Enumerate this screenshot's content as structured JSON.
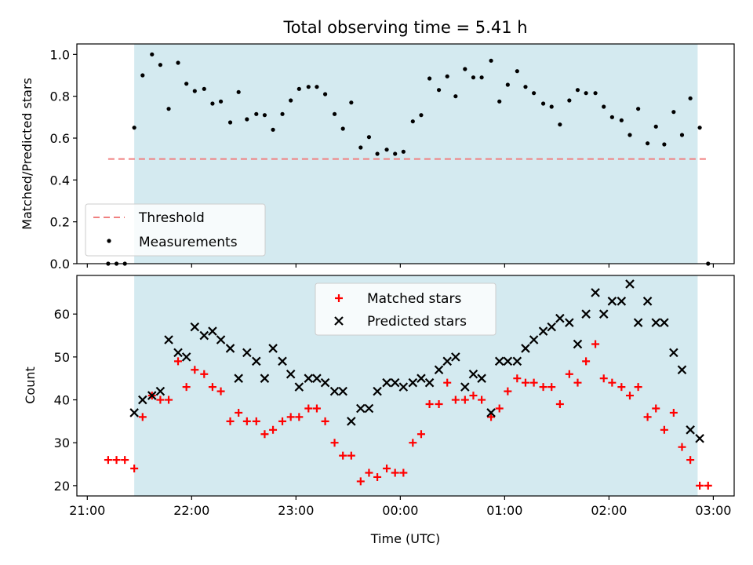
{
  "chart_data": [
    {
      "type": "scatter",
      "panel": "top",
      "title": "Total observing time = 5.41 h",
      "ylabel": "Matched/Predicted stars",
      "xlabel": "",
      "ylim": [
        0,
        1.05
      ],
      "yticks": [
        0.0,
        0.2,
        0.4,
        0.6,
        0.8,
        1.0
      ],
      "ytick_labels": [
        "0.0",
        "0.2",
        "0.4",
        "0.6",
        "0.8",
        "1.0"
      ],
      "xlim": [
        20.9,
        27.2
      ],
      "xticks": [
        21,
        22,
        23,
        24,
        25,
        26,
        27
      ],
      "grid": false,
      "legend_position": "lower-left",
      "shaded_region": {
        "x_start": 21.45,
        "x_end": 26.85,
        "color": "#d4eaf0"
      },
      "threshold": {
        "name": "Threshold",
        "value": 0.5,
        "x_start": 21.2,
        "x_end": 26.93,
        "color": "#f08080",
        "style": "dashed"
      },
      "series": [
        {
          "name": "Measurements",
          "color": "#000000",
          "marker": "dot",
          "x": [
            21.2,
            21.28,
            21.36,
            21.45,
            21.53,
            21.62,
            21.7,
            21.78,
            21.87,
            21.95,
            22.03,
            22.12,
            22.2,
            22.28,
            22.37,
            22.45,
            22.53,
            22.62,
            22.7,
            22.78,
            22.87,
            22.95,
            23.03,
            23.12,
            23.2,
            23.28,
            23.37,
            23.45,
            23.53,
            23.62,
            23.7,
            23.78,
            23.87,
            23.95,
            24.03,
            24.12,
            24.2,
            24.28,
            24.37,
            24.45,
            24.53,
            24.62,
            24.7,
            24.78,
            24.87,
            24.95,
            25.03,
            25.12,
            25.2,
            25.28,
            25.37,
            25.45,
            25.53,
            25.62,
            25.7,
            25.78,
            25.87,
            25.95,
            26.03,
            26.12,
            26.2,
            26.28,
            26.37,
            26.45,
            26.53,
            26.62,
            26.7,
            26.78,
            26.87,
            26.95
          ],
          "y": [
            0.0,
            0.0,
            0.0,
            0.65,
            0.9,
            1.0,
            0.95,
            0.74,
            0.96,
            0.86,
            0.825,
            0.835,
            0.765,
            0.775,
            0.675,
            0.82,
            0.69,
            0.715,
            0.71,
            0.64,
            0.715,
            0.78,
            0.835,
            0.845,
            0.845,
            0.81,
            0.715,
            0.645,
            0.77,
            0.555,
            0.605,
            0.525,
            0.545,
            0.525,
            0.535,
            0.68,
            0.71,
            0.885,
            0.83,
            0.895,
            0.8,
            0.93,
            0.89,
            0.89,
            0.97,
            0.775,
            0.855,
            0.92,
            0.845,
            0.815,
            0.765,
            0.75,
            0.665,
            0.78,
            0.83,
            0.815,
            0.815,
            0.75,
            0.7,
            0.685,
            0.615,
            0.74,
            0.575,
            0.655,
            0.57,
            0.725,
            0.615,
            0.79,
            0.65,
            0.0
          ]
        }
      ]
    },
    {
      "type": "scatter",
      "panel": "bottom",
      "title": "",
      "ylabel": "Count",
      "xlabel": "Time (UTC)",
      "ylim": [
        17.6,
        69
      ],
      "yticks": [
        20,
        30,
        40,
        50,
        60
      ],
      "ytick_labels": [
        "20",
        "30",
        "40",
        "50",
        "60"
      ],
      "xlim": [
        20.9,
        27.2
      ],
      "xticks": [
        21,
        22,
        23,
        24,
        25,
        26,
        27
      ],
      "xtick_labels": [
        "21:00",
        "22:00",
        "23:00",
        "00:00",
        "01:00",
        "02:00",
        "03:00"
      ],
      "grid": false,
      "legend_position": "upper-center",
      "shaded_region": {
        "x_start": 21.45,
        "x_end": 26.85,
        "color": "#d4eaf0"
      },
      "series": [
        {
          "name": "Matched stars",
          "color": "#ff0000",
          "marker": "plus",
          "x": [
            21.2,
            21.28,
            21.36,
            21.45,
            21.53,
            21.62,
            21.7,
            21.78,
            21.87,
            21.95,
            22.03,
            22.12,
            22.2,
            22.28,
            22.37,
            22.45,
            22.53,
            22.62,
            22.7,
            22.78,
            22.87,
            22.95,
            23.03,
            23.12,
            23.2,
            23.28,
            23.37,
            23.45,
            23.53,
            23.62,
            23.7,
            23.78,
            23.87,
            23.95,
            24.03,
            24.12,
            24.2,
            24.28,
            24.37,
            24.45,
            24.53,
            24.62,
            24.7,
            24.78,
            24.87,
            24.95,
            25.03,
            25.12,
            25.2,
            25.28,
            25.37,
            25.45,
            25.53,
            25.62,
            25.7,
            25.78,
            25.87,
            25.95,
            26.03,
            26.12,
            26.2,
            26.28,
            26.37,
            26.45,
            26.53,
            26.62,
            26.7,
            26.78,
            26.87,
            26.95
          ],
          "y": [
            26,
            26,
            26,
            24,
            36,
            41,
            40,
            40,
            49,
            43,
            47,
            46,
            43,
            42,
            35,
            37,
            35,
            35,
            32,
            33,
            35,
            36,
            36,
            38,
            38,
            35,
            30,
            27,
            27,
            21,
            23,
            22,
            24,
            23,
            23,
            30,
            32,
            39,
            39,
            44,
            40,
            40,
            41,
            40,
            36,
            38,
            42,
            45,
            44,
            44,
            43,
            43,
            39,
            46,
            44,
            49,
            53,
            45,
            44,
            43,
            41,
            43,
            36,
            38,
            33,
            37,
            29,
            26,
            20,
            20
          ]
        },
        {
          "name": "Predicted stars",
          "color": "#000000",
          "marker": "x",
          "x": [
            21.45,
            21.53,
            21.62,
            21.7,
            21.78,
            21.87,
            21.95,
            22.03,
            22.12,
            22.2,
            22.28,
            22.37,
            22.45,
            22.53,
            22.62,
            22.7,
            22.78,
            22.87,
            22.95,
            23.03,
            23.12,
            23.2,
            23.28,
            23.37,
            23.45,
            23.53,
            23.62,
            23.7,
            23.78,
            23.87,
            23.95,
            24.03,
            24.12,
            24.2,
            24.28,
            24.37,
            24.45,
            24.53,
            24.62,
            24.7,
            24.78,
            24.87,
            24.95,
            25.03,
            25.12,
            25.2,
            25.28,
            25.37,
            25.45,
            25.53,
            25.62,
            25.7,
            25.78,
            25.87,
            25.95,
            26.03,
            26.12,
            26.2,
            26.28,
            26.37,
            26.45,
            26.53,
            26.62,
            26.7,
            26.78,
            26.87
          ],
          "y": [
            37,
            40,
            41,
            42,
            54,
            51,
            50,
            57,
            55,
            56,
            54,
            52,
            45,
            51,
            49,
            45,
            52,
            49,
            46,
            43,
            45,
            45,
            44,
            42,
            42,
            35,
            38,
            38,
            42,
            44,
            44,
            43,
            44,
            45,
            44,
            47,
            49,
            50,
            43,
            46,
            45,
            37,
            49,
            49,
            49,
            52,
            54,
            56,
            57,
            59,
            58,
            53,
            60,
            65,
            60,
            63,
            63,
            67,
            58,
            63,
            58,
            58,
            51,
            47,
            33,
            31
          ]
        }
      ]
    }
  ]
}
